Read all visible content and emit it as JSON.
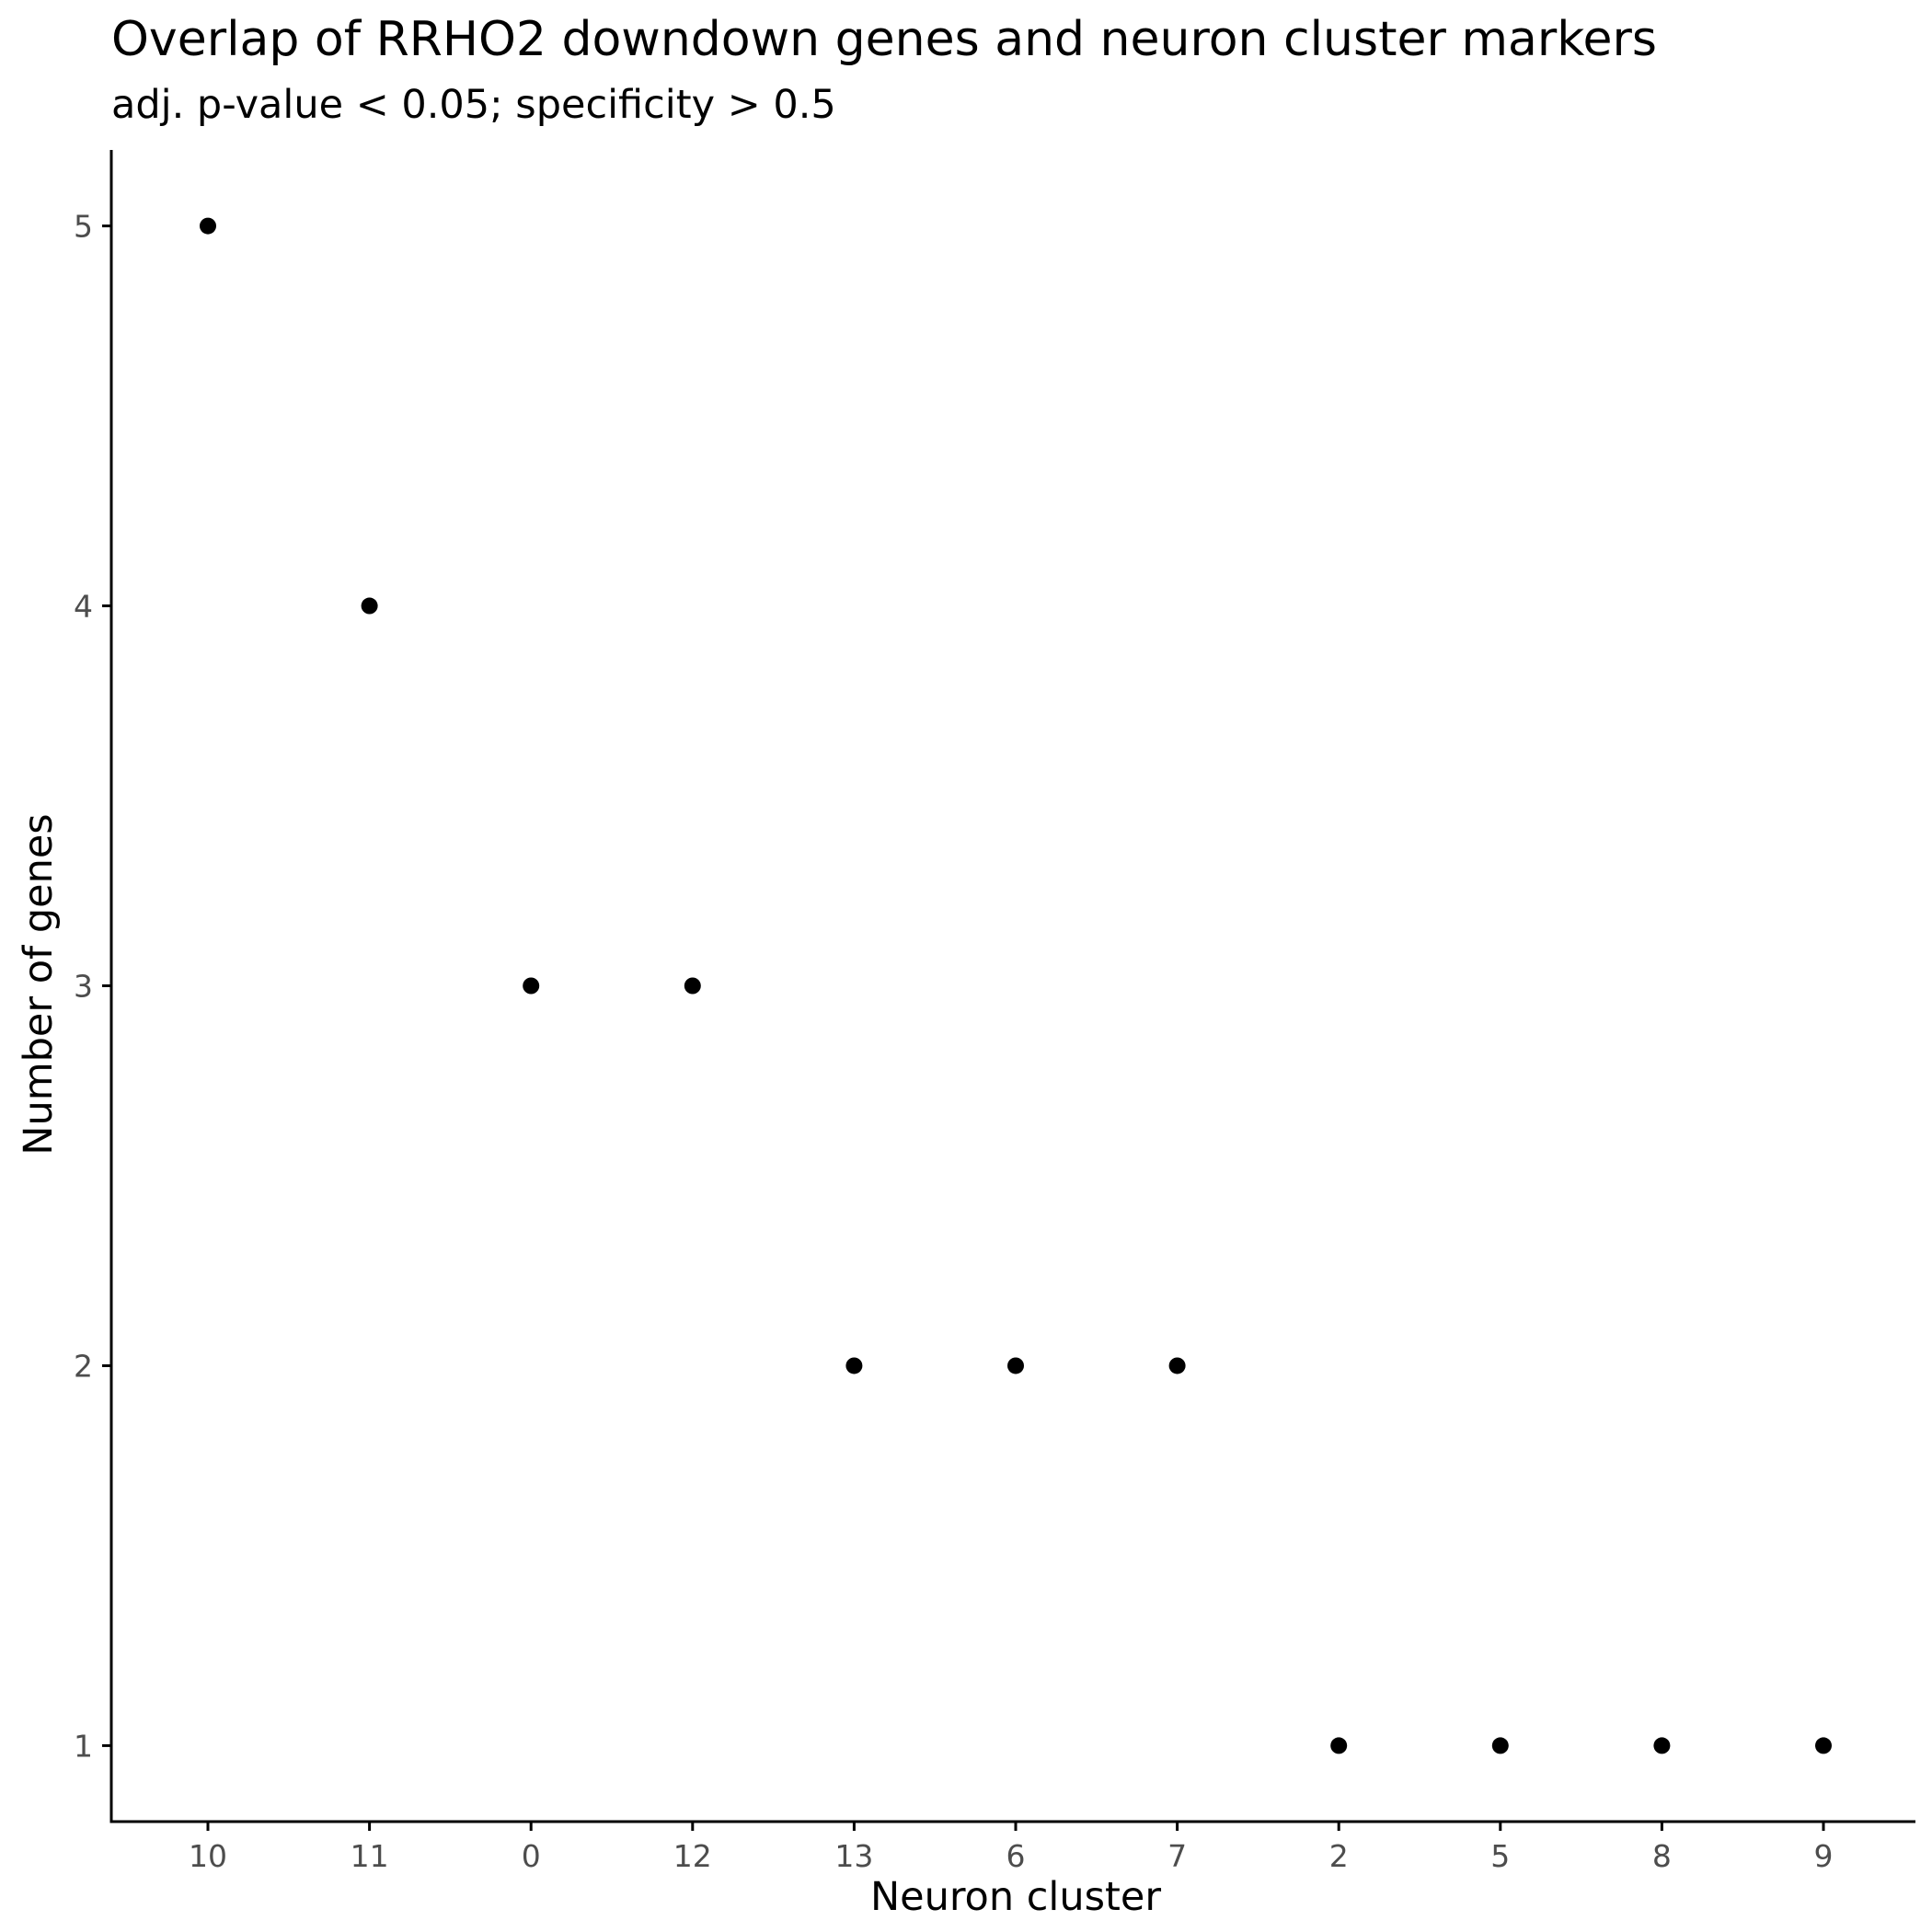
{
  "chart_data": {
    "type": "scatter",
    "title": "Overlap of RRHO2 downdown genes and neuron cluster markers",
    "subtitle": "adj. p-value < 0.05; specificity > 0.5",
    "xlabel": "Neuron cluster",
    "ylabel": "Number of genes",
    "categories": [
      "10",
      "11",
      "0",
      "12",
      "13",
      "6",
      "7",
      "2",
      "5",
      "8",
      "9"
    ],
    "values": [
      5,
      4,
      3,
      3,
      2,
      2,
      2,
      1,
      1,
      1,
      1
    ],
    "y_ticks": [
      1,
      2,
      3,
      4,
      5
    ],
    "ylim": [
      0.8,
      5.2
    ],
    "grid": false,
    "point_color": "#000000",
    "axis_color": "#000000",
    "tick_label_color": "#4d4d4d"
  }
}
